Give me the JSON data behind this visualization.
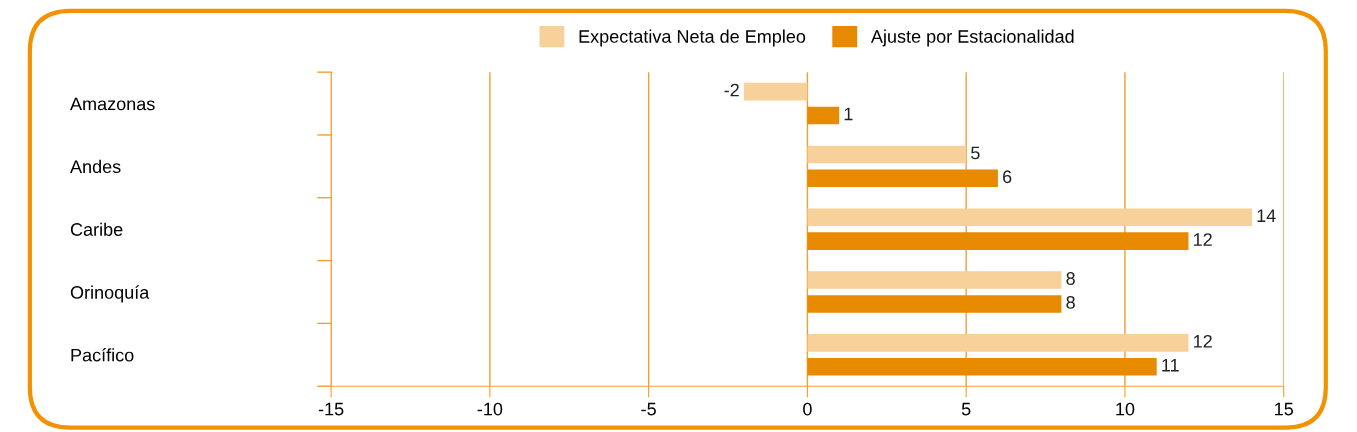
{
  "chart_data": {
    "type": "bar",
    "orientation": "horizontal",
    "categories": [
      "Amazonas",
      "Andes",
      "Caribe",
      "Orinoquía",
      "Pacífico"
    ],
    "series": [
      {
        "name": "Expectativa Neta de Empleo",
        "color": "#f7d09a",
        "values": [
          -2,
          5,
          14,
          8,
          12
        ]
      },
      {
        "name": "Ajuste por Estacionalidad",
        "color": "#e88a00",
        "values": [
          1,
          6,
          12,
          8,
          11
        ]
      }
    ],
    "xlim": [
      -15,
      15
    ],
    "xticks": [
      -15,
      -10,
      -5,
      0,
      5,
      10,
      15
    ],
    "grid": "x",
    "legend": "top",
    "data_labels": true
  }
}
